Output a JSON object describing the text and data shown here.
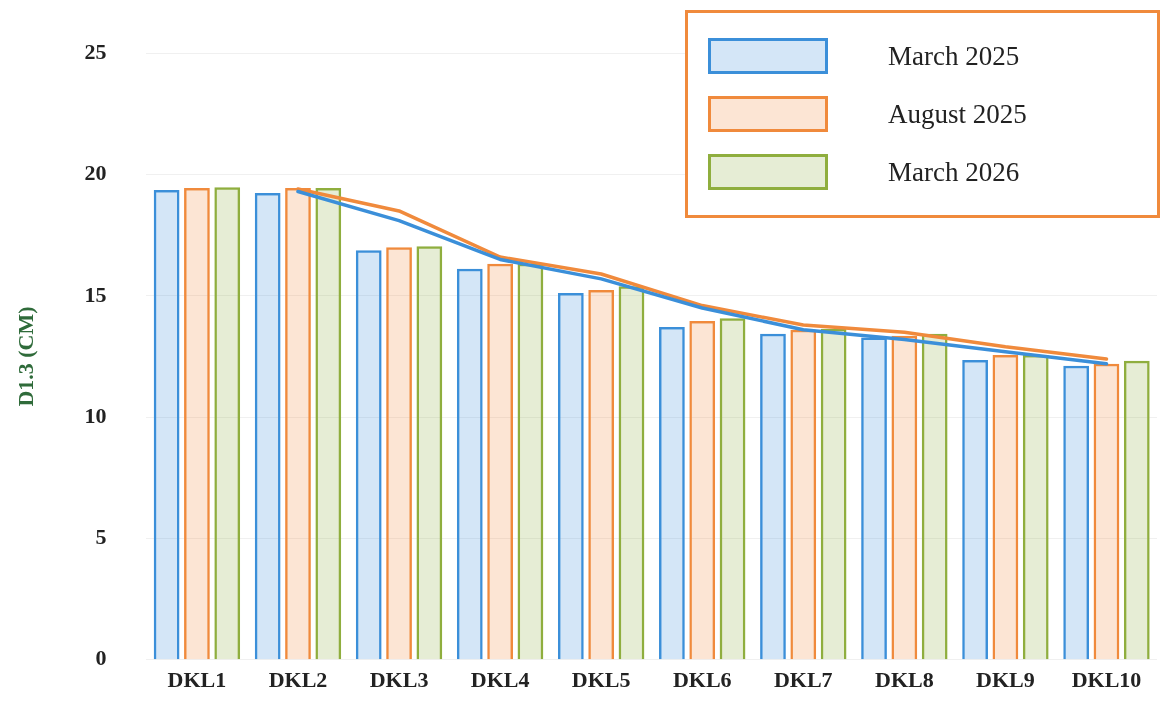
{
  "chart_data": {
    "type": "bar",
    "ylabel": "D1.3 (CM)",
    "categories": [
      "DKL1",
      "DKL2",
      "DKL3",
      "DKL4",
      "DKL5",
      "DKL6",
      "DKL7",
      "DKL8",
      "DKL9",
      "DKL10"
    ],
    "series": [
      {
        "name": "March 2025",
        "color": "#3b8fd9",
        "values": [
          19.36,
          19.24,
          16.88,
          16.12,
          15.12,
          13.72,
          13.44,
          13.28,
          12.36,
          12.12
        ]
      },
      {
        "name": "August 2025",
        "color": "#f08a3c",
        "values": [
          19.44,
          19.44,
          17.0,
          16.32,
          15.24,
          13.96,
          13.6,
          13.36,
          12.56,
          12.2
        ]
      },
      {
        "name": "March 2026",
        "color": "#8fae3e",
        "values": [
          19.48,
          19.44,
          17.04,
          16.32,
          15.4,
          14.08,
          13.64,
          13.44,
          12.56,
          12.32
        ]
      },
      {
        "type": "line",
        "color": "#3b8fd9",
        "values": [
          null,
          19.3,
          18.1,
          16.5,
          15.7,
          14.5,
          13.6,
          13.2,
          12.7,
          12.2
        ]
      },
      {
        "type": "line",
        "color": "#f08a3c",
        "values": [
          null,
          19.4,
          18.5,
          16.6,
          15.9,
          14.6,
          13.8,
          13.5,
          12.9,
          12.4
        ]
      }
    ],
    "ylim": [
      0,
      25
    ],
    "yticks": [
      0,
      5,
      10,
      15,
      20,
      25
    ],
    "grid": "y",
    "legend": "top right"
  }
}
